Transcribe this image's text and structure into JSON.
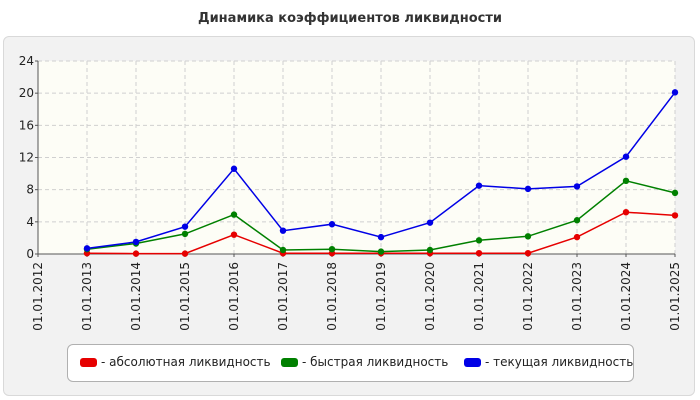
{
  "chart_data": {
    "type": "line",
    "title": "Динамика коэффициентов ликвидности",
    "categories": [
      "01.01.2012",
      "01.01.2013",
      "01.01.2014",
      "01.01.2015",
      "01.01.2016",
      "01.01.2017",
      "01.01.2018",
      "01.01.2019",
      "01.01.2020",
      "01.01.2021",
      "01.01.2022",
      "01.01.2023",
      "01.01.2024",
      "01.01.2025"
    ],
    "ylim": [
      0,
      24
    ],
    "yticks": [
      "0",
      "4",
      "8",
      "12",
      "16",
      "20",
      "24"
    ],
    "grid": true,
    "legend_position": "bottom",
    "series": [
      {
        "name": "- абсолютная ликвидность",
        "color": "#e60000",
        "values": [
          null,
          0.1,
          0.05,
          0.05,
          2.4,
          0.1,
          0.1,
          0.1,
          0.1,
          0.1,
          0.1,
          2.1,
          5.2,
          4.8
        ]
      },
      {
        "name": "- быстрая ликвидность",
        "color": "#008000",
        "values": [
          null,
          0.6,
          1.3,
          2.5,
          4.9,
          0.5,
          0.6,
          0.3,
          0.5,
          1.7,
          2.2,
          4.2,
          9.1,
          7.6
        ]
      },
      {
        "name": "- текущая ликвидность",
        "color": "#0000e6",
        "values": [
          null,
          0.7,
          1.5,
          3.4,
          10.6,
          2.9,
          3.7,
          2.1,
          3.9,
          8.5,
          8.1,
          8.4,
          12.1,
          20.1
        ]
      }
    ]
  }
}
